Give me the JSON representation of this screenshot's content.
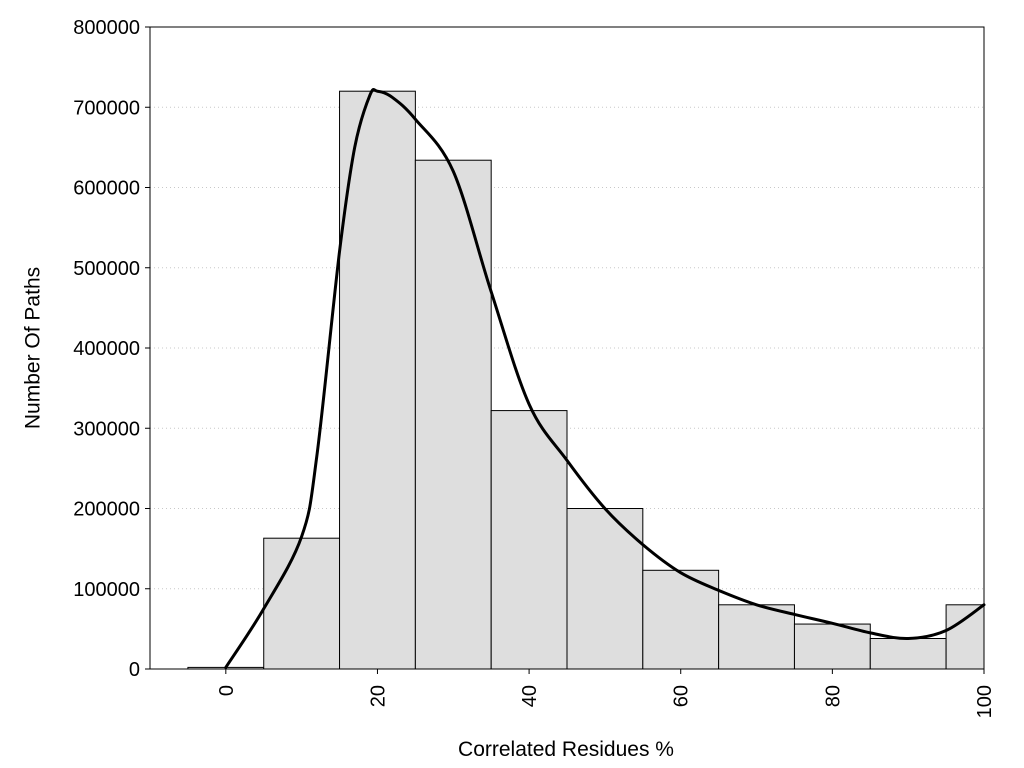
{
  "chart_data": {
    "type": "bar",
    "xlabel": "Correlated Residues %",
    "ylabel": "Number Of Paths",
    "xlim": [
      -10,
      100
    ],
    "ylim": [
      0,
      800000
    ],
    "x_ticks": [
      "0",
      "20",
      "40",
      "60",
      "80",
      "100"
    ],
    "y_ticks": [
      "0",
      "100000",
      "200000",
      "300000",
      "400000",
      "500000",
      "600000",
      "700000",
      "800000"
    ],
    "grid": "horizontal dotted",
    "legend": "none",
    "histogram": {
      "bin_width": 10,
      "bin_centers": [
        0,
        10,
        20,
        30,
        40,
        50,
        60,
        70,
        80,
        90,
        100
      ],
      "values": [
        2000,
        163000,
        720000,
        634000,
        322000,
        200000,
        123000,
        80000,
        56000,
        38000,
        80000
      ]
    },
    "density_curve": {
      "x": [
        0,
        5,
        10,
        12,
        15,
        17,
        19,
        20,
        22,
        25,
        30,
        35,
        40,
        45,
        50,
        55,
        60,
        65,
        70,
        75,
        80,
        85,
        90,
        95,
        100
      ],
      "y": [
        2000,
        75000,
        165000,
        265000,
        520000,
        650000,
        715000,
        720000,
        712000,
        685000,
        620000,
        470000,
        330000,
        260000,
        200000,
        155000,
        120000,
        98000,
        80000,
        68000,
        57000,
        45000,
        38000,
        48000,
        80000
      ]
    },
    "colors": {
      "bar_fill": "#dedede",
      "bar_stroke": "#000000",
      "curve": "#000000",
      "grid": "#c8c8c8"
    }
  }
}
